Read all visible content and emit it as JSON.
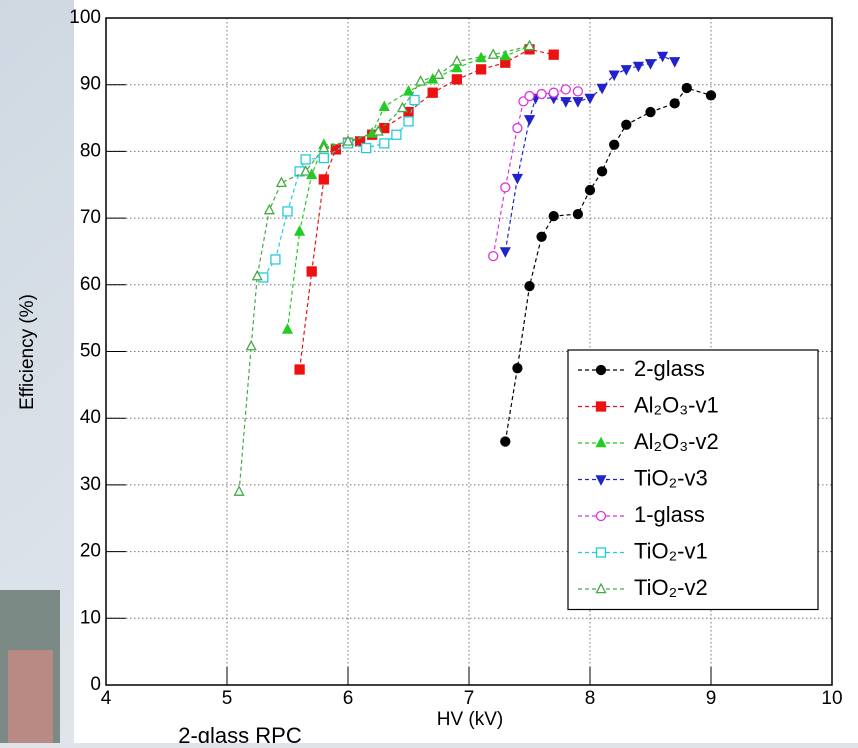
{
  "caption": "2-glass RPC",
  "chart_data": {
    "type": "line",
    "xlabel": "HV (kV)",
    "ylabel": "Efficiency (%)",
    "xlim": [
      4,
      10
    ],
    "ylim": [
      0,
      100
    ],
    "xticks": [
      4,
      5,
      6,
      7,
      8,
      9,
      10
    ],
    "yticks": [
      0,
      10,
      20,
      30,
      40,
      50,
      60,
      70,
      80,
      90,
      100
    ],
    "grid": true,
    "legend_position": "lower right",
    "series": [
      {
        "name": "2-glass",
        "color": "#000000",
        "marker": "circle",
        "filled": true,
        "x": [
          7.3,
          7.4,
          7.5,
          7.6,
          7.7,
          7.9,
          8.0,
          8.1,
          8.2,
          8.3,
          8.5,
          8.7,
          8.8,
          9.0
        ],
        "values": [
          36.5,
          47.5,
          59.8,
          67.2,
          70.3,
          70.6,
          74.2,
          77,
          81,
          84,
          85.9,
          87.2,
          89.5,
          88.4
        ]
      },
      {
        "name": "Al₂O₃-v1",
        "color": "#ee1111",
        "marker": "square",
        "filled": true,
        "x": [
          5.6,
          5.7,
          5.8,
          5.9,
          6.0,
          6.1,
          6.2,
          6.3,
          6.5,
          6.7,
          6.9,
          7.1,
          7.3,
          7.5,
          7.7
        ],
        "values": [
          47.3,
          62,
          75.8,
          80.3,
          81.3,
          81.5,
          82.5,
          83.5,
          85.9,
          88.8,
          90.8,
          92.3,
          93.3,
          95.3,
          94.5
        ]
      },
      {
        "name": "Al₂O₃-v2",
        "color": "#22cc22",
        "marker": "triangle-up",
        "filled": true,
        "x": [
          5.5,
          5.6,
          5.7,
          5.8,
          6.0,
          6.2,
          6.3,
          6.5,
          6.7,
          6.9,
          7.1,
          7.3,
          7.5
        ],
        "values": [
          53.3,
          68,
          76.5,
          81,
          81.3,
          82.7,
          86.7,
          89,
          90.8,
          92.5,
          94,
          94.3,
          95.8
        ]
      },
      {
        "name": "TiO₂-v3",
        "color": "#2222cc",
        "marker": "triangle-down",
        "filled": true,
        "x": [
          7.3,
          7.4,
          7.5,
          7.55,
          7.7,
          7.8,
          7.9,
          8.0,
          8.1,
          8.2,
          8.3,
          8.4,
          8.5,
          8.6,
          8.7
        ],
        "values": [
          65,
          76,
          84.8,
          88,
          88,
          87.5,
          87.5,
          88,
          89.5,
          91.5,
          92.3,
          92.8,
          93.2,
          94.3,
          93.5
        ]
      },
      {
        "name": "1-glass",
        "color": "#dd33dd",
        "marker": "circle",
        "filled": false,
        "x": [
          7.2,
          7.3,
          7.4,
          7.45,
          7.5,
          7.6,
          7.7,
          7.8,
          7.9
        ],
        "values": [
          64.3,
          74.6,
          83.5,
          87.5,
          88.3,
          88.6,
          88.8,
          89.3,
          89
        ]
      },
      {
        "name": "TiO₂-v1",
        "color": "#22ccdd",
        "marker": "square",
        "filled": false,
        "x": [
          5.3,
          5.4,
          5.5,
          5.6,
          5.65,
          5.8,
          6.0,
          6.15,
          6.3,
          6.4,
          6.5,
          6.55
        ],
        "values": [
          61.1,
          63.8,
          71,
          77,
          78.8,
          79,
          81.2,
          80.5,
          81.2,
          82.5,
          84.5,
          87.7
        ]
      },
      {
        "name": "TiO₂-v2",
        "color": "#44aa44",
        "marker": "triangle-up",
        "filled": false,
        "x": [
          5.1,
          5.2,
          5.25,
          5.35,
          5.45,
          5.65,
          5.8,
          6.0,
          6.25,
          6.45,
          6.6,
          6.75,
          6.9,
          7.2,
          7.5
        ],
        "values": [
          29,
          50.8,
          61.3,
          71.2,
          75.3,
          77,
          80.5,
          81.5,
          83,
          86.5,
          90.5,
          91.5,
          93.5,
          94.5,
          95.8
        ]
      }
    ]
  }
}
